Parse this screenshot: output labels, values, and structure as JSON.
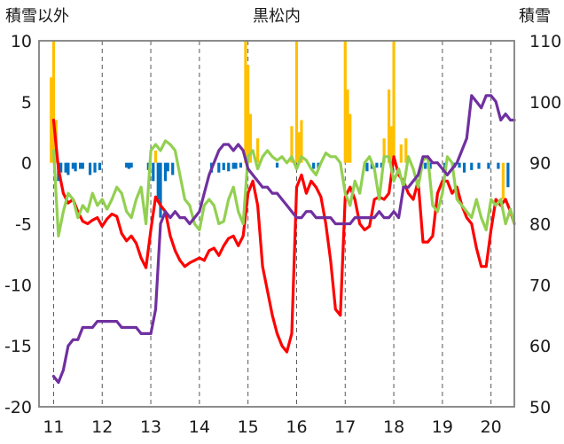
{
  "chart_data": {
    "type": "line",
    "title": "黒松内",
    "left_axis_label": "積雪以外",
    "right_axis_label": "積雪",
    "left_ylim": [
      -20,
      10
    ],
    "left_yticks": [
      10,
      5,
      0,
      -5,
      -10,
      -15,
      -20
    ],
    "right_ylim": [
      50,
      110
    ],
    "right_yticks": [
      110,
      100,
      90,
      80,
      70,
      60,
      50
    ],
    "x_ticks": [
      11,
      12,
      13,
      14,
      15,
      16,
      17,
      18,
      19,
      20
    ],
    "xlim": [
      10.7,
      20.48
    ],
    "grid": "vertical-dashed",
    "colors": {
      "red_line": "#ff0000",
      "green_line": "#92d050",
      "purple_line": "#7030a0",
      "orange_bars": "#ffc000",
      "blue_bars": "#0070c0"
    },
    "series": [
      {
        "axis": "left",
        "kind": "line",
        "color": "#ff0000",
        "x": [
          11.0,
          11.1,
          11.2,
          11.3,
          11.4,
          11.5,
          11.6,
          11.7,
          11.8,
          11.9,
          12.0,
          12.1,
          12.2,
          12.3,
          12.4,
          12.5,
          12.6,
          12.7,
          12.8,
          12.9,
          13.0,
          13.1,
          13.2,
          13.3,
          13.4,
          13.5,
          13.6,
          13.7,
          13.8,
          13.9,
          14.0,
          14.1,
          14.2,
          14.3,
          14.4,
          14.5,
          14.6,
          14.7,
          14.8,
          14.9,
          15.0,
          15.1,
          15.2,
          15.3,
          15.4,
          15.5,
          15.6,
          15.7,
          15.8,
          15.9,
          16.0,
          16.1,
          16.2,
          16.3,
          16.4,
          16.5,
          16.6,
          16.7,
          16.8,
          16.9,
          17.0,
          17.1,
          17.2,
          17.3,
          17.4,
          17.5,
          17.6,
          17.7,
          17.8,
          17.9,
          18.0,
          18.1,
          18.2,
          18.3,
          18.4,
          18.5,
          18.6,
          18.7,
          18.8,
          18.9,
          19.0,
          19.1,
          19.2,
          19.3,
          19.4,
          19.5,
          19.6,
          19.7,
          19.8,
          19.9,
          20.0,
          20.1,
          20.2,
          20.3,
          20.4,
          20.48
        ],
        "y": [
          3.5,
          -0.5,
          -2.5,
          -3.3,
          -3.0,
          -4.0,
          -4.8,
          -5.0,
          -4.7,
          -4.5,
          -5.2,
          -4.6,
          -4.2,
          -4.4,
          -5.8,
          -6.4,
          -6.0,
          -6.6,
          -7.8,
          -8.6,
          -5.5,
          -2.8,
          -3.5,
          -4.0,
          -6.0,
          -7.2,
          -8.0,
          -8.5,
          -8.2,
          -8.0,
          -7.8,
          -8.0,
          -7.2,
          -7.0,
          -7.6,
          -6.8,
          -6.2,
          -6.0,
          -6.8,
          -6.0,
          -2.5,
          -1.5,
          -3.5,
          -8.5,
          -10.5,
          -12.5,
          -14.0,
          -15.0,
          -15.5,
          -14.0,
          -2.0,
          -1.0,
          -2.5,
          -1.5,
          -2.0,
          -2.8,
          -5.0,
          -8.0,
          -12.0,
          -12.5,
          -2.8,
          -2.0,
          -3.0,
          -5.0,
          -5.5,
          -5.2,
          -3.0,
          -2.8,
          -3.0,
          -2.5,
          0.5,
          -1.0,
          -1.5,
          -2.5,
          -3.0,
          -1.5,
          -6.5,
          -6.5,
          -6.0,
          -2.5,
          -1.5,
          -1.5,
          -2.5,
          -2.0,
          -3.5,
          -4.5,
          -5.0,
          -7.0,
          -8.5,
          -8.5,
          -5.5,
          -3.0,
          -3.5,
          -3.0,
          -4.0,
          -5.0
        ]
      },
      {
        "axis": "left",
        "kind": "line",
        "color": "#92d050",
        "x": [
          11.0,
          11.1,
          11.2,
          11.3,
          11.4,
          11.5,
          11.6,
          11.7,
          11.8,
          11.9,
          12.0,
          12.1,
          12.2,
          12.3,
          12.4,
          12.5,
          12.6,
          12.7,
          12.8,
          12.9,
          13.0,
          13.1,
          13.2,
          13.3,
          13.4,
          13.5,
          13.6,
          13.7,
          13.8,
          13.9,
          14.0,
          14.1,
          14.2,
          14.3,
          14.4,
          14.5,
          14.6,
          14.7,
          14.8,
          14.9,
          15.0,
          15.1,
          15.2,
          15.3,
          15.4,
          15.5,
          15.6,
          15.7,
          15.8,
          15.9,
          16.0,
          16.1,
          16.2,
          16.3,
          16.4,
          16.5,
          16.6,
          16.7,
          16.8,
          16.9,
          17.0,
          17.1,
          17.2,
          17.3,
          17.4,
          17.5,
          17.6,
          17.7,
          17.8,
          17.9,
          18.0,
          18.1,
          18.2,
          18.3,
          18.4,
          18.5,
          18.6,
          18.7,
          18.8,
          18.9,
          19.0,
          19.1,
          19.2,
          19.3,
          19.4,
          19.5,
          19.6,
          19.7,
          19.8,
          19.9,
          20.0,
          20.1,
          20.2,
          20.3,
          20.4,
          20.48
        ],
        "y": [
          1.0,
          -6.0,
          -4.0,
          -2.5,
          -3.0,
          -4.5,
          -3.5,
          -4.0,
          -2.5,
          -3.5,
          -3.0,
          -3.8,
          -3.0,
          -2.0,
          -2.5,
          -4.0,
          -4.5,
          -3.0,
          -2.0,
          -5.0,
          1.0,
          1.5,
          1.0,
          1.8,
          1.5,
          1.0,
          -1.0,
          -3.0,
          -3.5,
          -5.0,
          -5.5,
          -3.5,
          -3.0,
          -3.5,
          -5.0,
          -4.8,
          -3.0,
          -2.0,
          -4.0,
          -5.0,
          0.5,
          1.0,
          -0.5,
          0.5,
          1.0,
          0.5,
          0.2,
          0.5,
          0.0,
          0.5,
          -0.5,
          0.5,
          0.2,
          -0.5,
          -1.0,
          0.0,
          0.8,
          0.5,
          0.5,
          0.0,
          -2.5,
          -3.5,
          -1.5,
          -2.5,
          0.0,
          0.5,
          -0.5,
          -3.0,
          0.5,
          0.5,
          -1.5,
          -0.5,
          -2.0,
          0.5,
          -0.5,
          -2.0,
          0.2,
          0.5,
          -3.5,
          -4.0,
          -2.5,
          0.5,
          0.0,
          -3.0,
          -3.5,
          -4.0,
          -4.5,
          -3.0,
          -4.5,
          -5.5,
          -3.0,
          -3.5,
          -3.0,
          -5.0,
          -3.8,
          -5.0
        ]
      },
      {
        "axis": "right",
        "kind": "line",
        "color": "#7030a0",
        "x": [
          11.0,
          11.1,
          11.2,
          11.3,
          11.4,
          11.5,
          11.6,
          11.7,
          11.8,
          11.9,
          12.0,
          12.1,
          12.2,
          12.3,
          12.4,
          12.5,
          12.6,
          12.7,
          12.8,
          12.9,
          13.0,
          13.1,
          13.2,
          13.3,
          13.4,
          13.5,
          13.6,
          13.7,
          13.8,
          13.9,
          14.0,
          14.1,
          14.2,
          14.3,
          14.4,
          14.5,
          14.6,
          14.7,
          14.8,
          14.9,
          15.0,
          15.1,
          15.2,
          15.3,
          15.4,
          15.5,
          15.6,
          15.7,
          15.8,
          15.9,
          16.0,
          16.1,
          16.2,
          16.3,
          16.4,
          16.5,
          16.6,
          16.7,
          16.8,
          16.9,
          17.0,
          17.1,
          17.2,
          17.3,
          17.4,
          17.5,
          17.6,
          17.7,
          17.8,
          17.9,
          18.0,
          18.1,
          18.2,
          18.3,
          18.4,
          18.5,
          18.6,
          18.7,
          18.8,
          18.9,
          19.0,
          19.1,
          19.2,
          19.3,
          19.4,
          19.5,
          19.6,
          19.7,
          19.8,
          19.9,
          20.0,
          20.1,
          20.2,
          20.3,
          20.4,
          20.48
        ],
        "y": [
          55,
          54,
          56,
          60,
          61,
          61,
          63,
          63,
          63,
          64,
          64,
          64,
          64,
          64,
          63,
          63,
          63,
          63,
          62,
          62,
          62,
          66,
          80,
          82,
          81,
          82,
          81,
          81,
          80,
          81,
          82,
          85,
          88,
          90,
          92,
          93,
          93,
          92,
          93,
          92,
          89,
          88,
          87,
          86,
          86,
          85,
          85,
          84,
          83,
          82,
          81,
          81,
          82,
          82,
          81,
          81,
          81,
          81,
          80,
          80,
          80,
          80,
          81,
          81,
          81,
          81,
          81,
          82,
          81,
          81,
          82,
          81,
          86,
          86,
          87,
          88,
          91,
          91,
          90,
          90,
          89,
          88,
          89,
          90,
          92,
          94,
          101,
          100,
          99,
          101,
          101,
          100,
          97,
          98,
          97,
          97
        ]
      },
      {
        "axis": "left",
        "kind": "bar",
        "color": "#ffc000",
        "x": [
          10.95,
          11.0,
          11.05,
          13.1,
          14.95,
          15.0,
          15.05,
          15.2,
          15.9,
          16.0,
          16.05,
          16.1,
          17.0,
          17.05,
          17.1,
          17.8,
          17.9,
          17.95,
          18.0,
          18.15,
          18.25,
          20.25
        ],
        "y": [
          7.0,
          10.0,
          3.5,
          1.0,
          10.0,
          8.0,
          4.0,
          2.0,
          3.0,
          10.0,
          2.5,
          3.5,
          10.0,
          6.0,
          4.0,
          2.0,
          6.0,
          3.0,
          10.0,
          1.5,
          2.0,
          -3.0
        ]
      },
      {
        "axis": "left",
        "kind": "bar",
        "color": "#0070c0",
        "x": [
          11.1,
          11.15,
          11.25,
          11.3,
          11.4,
          11.45,
          11.55,
          11.6,
          11.75,
          11.85,
          11.95,
          12.5,
          12.55,
          12.6,
          12.95,
          13.05,
          13.15,
          13.2,
          13.3,
          13.35,
          13.45,
          14.25,
          14.4,
          14.5,
          14.6,
          14.7,
          14.75,
          14.85,
          15.6,
          16.35,
          16.45,
          17.45,
          17.55,
          17.65,
          17.75,
          18.65,
          18.75,
          19.05,
          19.25,
          19.35,
          19.45,
          19.6,
          19.75,
          19.95,
          20.15,
          20.35
        ],
        "y": [
          -1.5,
          -0.8,
          -0.8,
          -1.0,
          -0.5,
          -0.7,
          -0.5,
          -0.5,
          -1.0,
          -0.8,
          -0.6,
          -0.4,
          -0.5,
          -0.4,
          -0.6,
          -1.5,
          -3.0,
          -4.5,
          -1.5,
          -0.7,
          -1.0,
          -0.8,
          -0.8,
          -0.6,
          -0.7,
          -0.5,
          -0.5,
          -0.4,
          -0.4,
          -0.5,
          -0.5,
          -0.7,
          -0.5,
          -0.4,
          -0.4,
          -0.5,
          -0.5,
          -0.6,
          -0.4,
          -0.4,
          -0.8,
          -0.6,
          -0.5,
          -0.5,
          -0.5,
          -2.0
        ]
      }
    ]
  }
}
